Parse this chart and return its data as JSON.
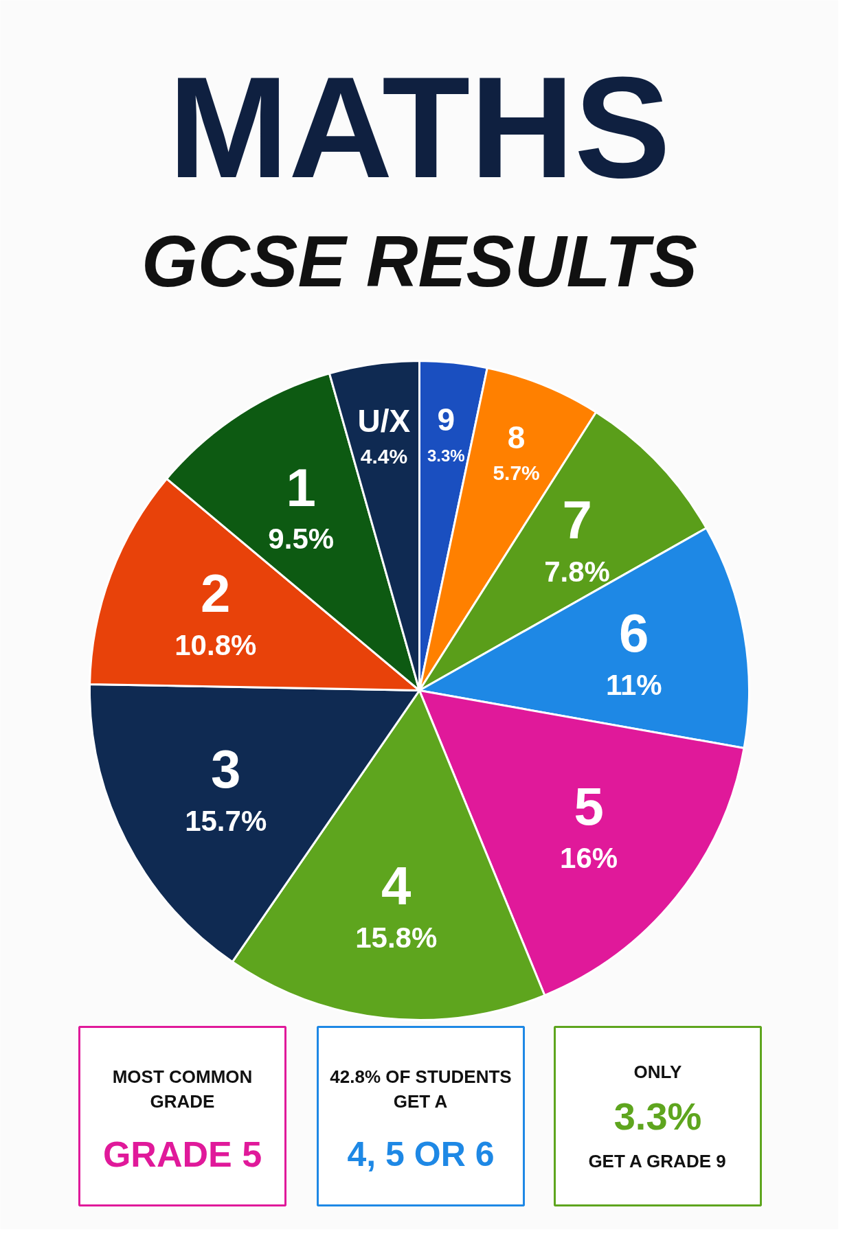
{
  "chart_data": {
    "type": "pie",
    "title": "MATHS",
    "subtitle": "GCSE RESULTS",
    "categories": [
      "9",
      "8",
      "7",
      "6",
      "5",
      "4",
      "3",
      "2",
      "1",
      "U/X"
    ],
    "values": [
      3.3,
      5.7,
      7.8,
      11,
      16,
      15.8,
      15.7,
      10.8,
      9.5,
      4.4
    ],
    "colors": [
      "#1a4fc0",
      "#ff8000",
      "#5a9e1a",
      "#1e88e5",
      "#e0199a",
      "#5ea51e",
      "#0f2a52",
      "#e8420a",
      "#0d5a12",
      "#0f2a52"
    ],
    "value_labels": [
      "3.3%",
      "5.7%",
      "7.8%",
      "11%",
      "16%",
      "15.8%",
      "15.7%",
      "10.8%",
      "9.5%",
      "4.4%"
    ],
    "annotations": [
      "MOST COMMON GRADE",
      "GRADE 5",
      "42.8% OF STUDENTS GET A",
      "4, 5 OR 6",
      "ONLY",
      "3.3%",
      "GET A GRADE 9"
    ]
  }
}
